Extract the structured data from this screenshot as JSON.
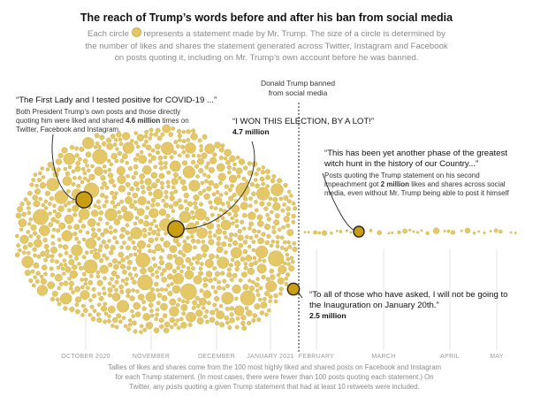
{
  "header": {
    "title": "The reach of Trump’s words before and after his ban from social media",
    "subtitle_part1": "Each circle",
    "subtitle_part2": "represents a statement made by Mr. Trump. The size of a circle is determined by the number of likes and shares the statement generated across Twitter, Instagram and Facebook on posts quoting it, including on Mr. Trump’s own account before he was banned."
  },
  "ban_marker": {
    "label": "Donald Trump banned from social media"
  },
  "annotations": {
    "covid": {
      "quote": "“The First Lady and I tested positive for COVID-19 ...”",
      "desc_before": "Both President Trump’s own posts and those directly quoting him were liked and shared ",
      "desc_bold": "4.6 million",
      "desc_after": " times on Twitter, Facebook and Instagram."
    },
    "won": {
      "quote": "“I WON THIS ELECTION, BY A LOT!”",
      "stat": "4.7 million"
    },
    "witch": {
      "quote": "“This has been yet another phase of the greatest witch hunt in the history of our Country...”",
      "desc_before": "Posts quoting the Trump statement on his second impeachment got ",
      "desc_bold": "2 million",
      "desc_after": " likes and shares across social media, even without Mr. Trump being able to post it himself"
    },
    "inauguration": {
      "quote": "“To all of those who have asked, I will not be going to the Inauguration on January 20th.”",
      "stat": "2.5 million"
    }
  },
  "chart_data": {
    "type": "scatter",
    "title": "The reach of Trump’s words before and after his ban from social media",
    "x_axis": {
      "ticks": [
        "OCTOBER 2020",
        "NOVEMBER",
        "DECEMBER",
        "JANUARY 2021",
        "FEBRUARY",
        "MARCH",
        "APRIL",
        "MAY"
      ]
    },
    "ban_date": "January 2021",
    "highlighted": [
      {
        "label": "“The First Lady and I tested positive for COVID-19 ...”",
        "date": "2020-10-02",
        "likes_shares_millions": 4.6
      },
      {
        "label": "“I WON THIS ELECTION, BY A LOT!”",
        "date": "2020-11-18",
        "likes_shares_millions": 4.7
      },
      {
        "label": "“To all of those who have asked, I will not be going to the Inauguration on January 20th.”",
        "date": "2021-01-08",
        "likes_shares_millions": 2.5
      },
      {
        "label": "“This has been yet another phase of the greatest witch hunt in the history of our Country...”",
        "date": "2021-02-13",
        "likes_shares_millions": 2.0
      }
    ],
    "colors": {
      "circle_fill": "#e4c766",
      "circle_stroke": "#d1b04a",
      "highlight_fill": "#c99e12",
      "highlight_stroke": "#2b2416"
    }
  },
  "footnote": "Tallies of likes and shares come from the 100 most highly liked and shared posts on Facebook and Instagram for each Trump statement. (In most cases, there were fewer than 100 posts quoting each statement.) On Twitter, any posts quoting a given Trump statement that had at least 10 retweets were included."
}
